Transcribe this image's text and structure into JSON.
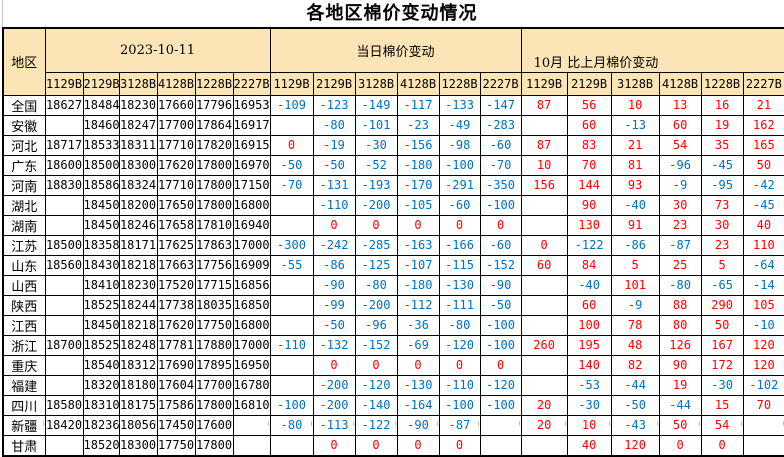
{
  "title": "各地区棉价变动情况",
  "colors": {
    "header_bg": "#FBE5B6",
    "negative_blue": "#0070C0",
    "positive_red": "#FF0000",
    "text_black": "#000000",
    "gridline_gray": "#C8C8C8"
  },
  "table": {
    "region_header": "地区",
    "groups": [
      {
        "label": "2023-10-11",
        "subcols": [
          "1129B",
          "2129B",
          "3128B",
          "4128B",
          "1228B",
          "2227B"
        ]
      },
      {
        "label": "当日棉价变动",
        "subcols": [
          "1129B",
          "2129B",
          "3128B",
          "4128B",
          "1228B",
          "2227B"
        ]
      },
      {
        "label": "10月 比上月棉价变动",
        "subcols": [
          "1129B",
          "2129B",
          "3128B",
          "4128B",
          "1228B",
          "2227B"
        ]
      }
    ],
    "rows": [
      {
        "region": "全国",
        "prices": [
          18627,
          18484,
          18230,
          17660,
          17796,
          16953
        ],
        "daily_change": [
          -109,
          -123,
          -149,
          -117,
          -133,
          -147
        ],
        "monthly_change": [
          87,
          56,
          10,
          13,
          16,
          21
        ]
      },
      {
        "region": "安徽",
        "prices": [
          null,
          18460,
          18247,
          17700,
          17864,
          16917
        ],
        "daily_change": [
          null,
          -80,
          -101,
          -23,
          -49,
          -283
        ],
        "monthly_change": [
          null,
          60,
          -13,
          60,
          19,
          162
        ]
      },
      {
        "region": "河北",
        "prices": [
          18717,
          18533,
          18311,
          17710,
          17820,
          16915
        ],
        "daily_change": [
          0,
          -19,
          -30,
          -156,
          -98,
          -60
        ],
        "monthly_change": [
          87,
          83,
          21,
          54,
          35,
          165
        ]
      },
      {
        "region": "广东",
        "prices": [
          18600,
          18500,
          18300,
          17620,
          17800,
          16970
        ],
        "daily_change": [
          -50,
          -50,
          -52,
          -180,
          -100,
          -70
        ],
        "monthly_change": [
          10,
          70,
          81,
          -96,
          -45,
          50
        ]
      },
      {
        "region": "河南",
        "prices": [
          18830,
          18586,
          18324,
          17710,
          17800,
          17150
        ],
        "daily_change": [
          -70,
          -131,
          -193,
          -170,
          -291,
          -350
        ],
        "monthly_change": [
          156,
          144,
          93,
          -9,
          -95,
          -42
        ]
      },
      {
        "region": "湖北",
        "prices": [
          null,
          18450,
          18200,
          17650,
          17800,
          16800
        ],
        "daily_change": [
          null,
          -110,
          -200,
          -105,
          -60,
          -100
        ],
        "monthly_change": [
          null,
          90,
          -40,
          30,
          73,
          -45
        ]
      },
      {
        "region": "湖南",
        "prices": [
          null,
          18450,
          18246,
          17658,
          17810,
          16940
        ],
        "daily_change": [
          null,
          0,
          0,
          0,
          0,
          0
        ],
        "monthly_change": [
          null,
          130,
          91,
          23,
          30,
          40
        ]
      },
      {
        "region": "江苏",
        "prices": [
          18500,
          18358,
          18171,
          17625,
          17863,
          17000
        ],
        "daily_change": [
          -300,
          -242,
          -285,
          -163,
          -166,
          -60
        ],
        "monthly_change": [
          0,
          -122,
          -86,
          -87,
          23,
          110
        ]
      },
      {
        "region": "山东",
        "prices": [
          18560,
          18430,
          18218,
          17663,
          17756,
          16909
        ],
        "daily_change": [
          -55,
          -86,
          -125,
          -107,
          -115,
          -152
        ],
        "monthly_change": [
          60,
          84,
          5,
          25,
          5,
          -64
        ]
      },
      {
        "region": "山西",
        "prices": [
          null,
          18410,
          18230,
          17520,
          17715,
          16856
        ],
        "daily_change": [
          null,
          -90,
          -80,
          -180,
          -130,
          -90
        ],
        "monthly_change": [
          null,
          -40,
          101,
          -80,
          -65,
          -14
        ]
      },
      {
        "region": "陕西",
        "prices": [
          null,
          18525,
          18244,
          17738,
          18035,
          16850
        ],
        "daily_change": [
          null,
          -99,
          -200,
          -112,
          -111,
          -50
        ],
        "monthly_change": [
          null,
          60,
          -9,
          88,
          290,
          105
        ]
      },
      {
        "region": "江西",
        "prices": [
          null,
          18450,
          18218,
          17620,
          17750,
          16800
        ],
        "daily_change": [
          null,
          -50,
          -96,
          -36,
          -80,
          -100
        ],
        "monthly_change": [
          null,
          100,
          78,
          80,
          50,
          -10
        ]
      },
      {
        "region": "浙江",
        "prices": [
          18700,
          18525,
          18248,
          17781,
          17880,
          17000
        ],
        "daily_change": [
          -110,
          -132,
          -152,
          -69,
          -120,
          -100
        ],
        "monthly_change": [
          260,
          195,
          48,
          126,
          167,
          120
        ]
      },
      {
        "region": "重庆",
        "prices": [
          null,
          18540,
          18312,
          17690,
          17895,
          16950
        ],
        "daily_change": [
          null,
          0,
          0,
          0,
          0,
          0
        ],
        "monthly_change": [
          null,
          140,
          82,
          90,
          172,
          120
        ]
      },
      {
        "region": "福建",
        "prices": [
          null,
          18320,
          18180,
          17604,
          17700,
          16780
        ],
        "daily_change": [
          null,
          -200,
          -120,
          -130,
          -110,
          -120
        ],
        "monthly_change": [
          null,
          -53,
          -44,
          19,
          -30,
          -102
        ]
      },
      {
        "region": "四川",
        "prices": [
          18580,
          18310,
          18175,
          17586,
          17800,
          16810
        ],
        "daily_change": [
          -100,
          -200,
          -140,
          -164,
          -100,
          -100
        ],
        "monthly_change": [
          20,
          -30,
          -50,
          -44,
          15,
          70
        ]
      },
      {
        "region": "新疆",
        "prices": [
          18420,
          18236,
          18056,
          17450,
          17600,
          null
        ],
        "daily_change": [
          -80,
          -113,
          -122,
          -90,
          -87,
          null
        ],
        "monthly_change": [
          20,
          10,
          -43,
          50,
          54,
          null
        ]
      },
      {
        "region": "甘肃",
        "prices": [
          null,
          18520,
          18300,
          17750,
          17800,
          null
        ],
        "daily_change": [
          null,
          0,
          0,
          0,
          0,
          null
        ],
        "monthly_change": [
          null,
          40,
          120,
          0,
          0,
          null
        ]
      }
    ]
  }
}
